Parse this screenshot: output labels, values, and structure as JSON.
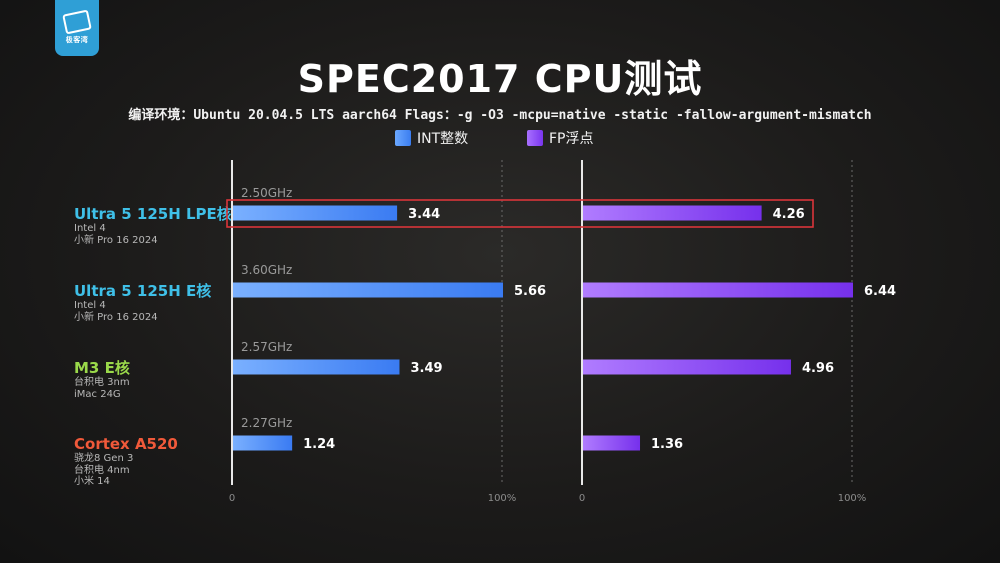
{
  "logo": {
    "text": "极客湾"
  },
  "title": "SPEC2017 CPU测试",
  "subtitle": "编译环境：Ubuntu 20.04.5 LTS aarch64 Flags：-g -O3 -mcpu=native -static -fallow-argument-mismatch",
  "colors": {
    "int": "#4f8ff7",
    "fp": "#8a45f0",
    "highlight": "#d9353a"
  },
  "chart_data": {
    "type": "bar",
    "orientation": "horizontal",
    "series": [
      {
        "name": "INT整数",
        "values": [
          3.44,
          5.66,
          3.49,
          1.24
        ]
      },
      {
        "name": "FP浮点",
        "values": [
          4.26,
          6.44,
          4.96,
          1.36
        ]
      }
    ],
    "categories": [
      {
        "name": "Ultra 5 125H LPE核",
        "color": "#3fc0e8",
        "sub": [
          "Intel 4",
          "小新 Pro 16 2024"
        ],
        "freq": "2.50GHz",
        "highlight": true
      },
      {
        "name": "Ultra 5 125H E核",
        "color": "#3fc0e8",
        "sub": [
          "Intel 4",
          "小新 Pro 16 2024"
        ],
        "freq": "3.60GHz",
        "highlight": false
      },
      {
        "name": "M3 E核",
        "color": "#9ad94a",
        "sub": [
          "台积电 3nm",
          "iMac 24G"
        ],
        "freq": "2.57GHz",
        "highlight": false
      },
      {
        "name": "Cortex A520",
        "color": "#f0593a",
        "sub": [
          "骁龙8 Gen 3",
          "台积电 4nm",
          "小米 14"
        ],
        "freq": "2.27GHz",
        "highlight": false
      }
    ],
    "axes": [
      {
        "series": "INT整数",
        "min_label": "0",
        "max_label": "100%",
        "max": 5.66
      },
      {
        "series": "FP浮点",
        "min_label": "0",
        "max_label": "100%",
        "max": 6.44
      }
    ]
  }
}
